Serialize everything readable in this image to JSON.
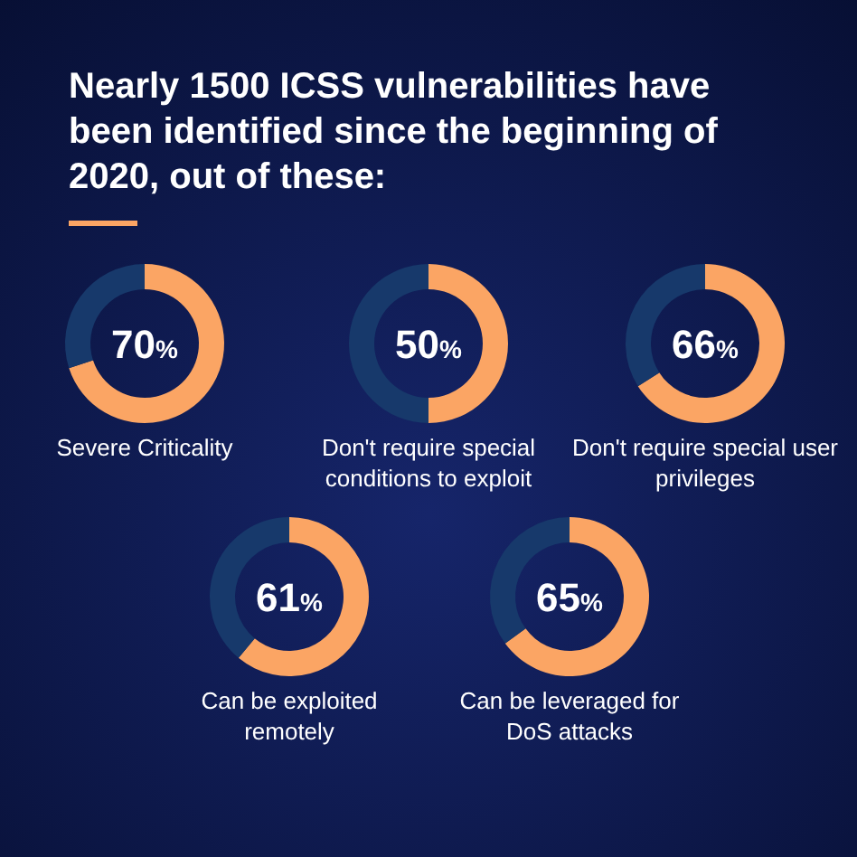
{
  "chart_data": [
    {
      "type": "other",
      "title": "Nearly 1500 ICSS vulnerabilities have been identified since the beginning of 2020, out of these:"
    },
    {
      "type": "donut",
      "title": "Severe Criticality",
      "categories": [
        null,
        null
      ],
      "values": [
        70,
        30
      ],
      "colors": [
        "#fba564",
        "#17396b"
      ],
      "value_labels": [
        "70%",
        null
      ]
    },
    {
      "type": "donut",
      "title": "Don't require special conditions to exploit",
      "categories": [
        null,
        null
      ],
      "values": [
        50,
        50
      ],
      "colors": [
        "#fba564",
        "#17396b"
      ],
      "value_labels": [
        "50%",
        null
      ]
    },
    {
      "type": "donut",
      "title": "Don't require special user privileges",
      "categories": [
        null,
        null
      ],
      "values": [
        66,
        34
      ],
      "colors": [
        "#fba564",
        "#17396b"
      ],
      "value_labels": [
        "66%",
        null
      ]
    },
    {
      "type": "donut",
      "title": "Can be exploited remotely",
      "categories": [
        null,
        null
      ],
      "values": [
        61,
        39
      ],
      "colors": [
        "#fba564",
        "#17396b"
      ],
      "value_labels": [
        "61%",
        null
      ]
    },
    {
      "type": "donut",
      "title": "Can be leveraged for DoS attacks",
      "categories": [
        null,
        null
      ],
      "values": [
        65,
        35
      ],
      "colors": [
        "#fba564",
        "#17396b"
      ],
      "value_labels": [
        "65%",
        null
      ]
    }
  ]
}
